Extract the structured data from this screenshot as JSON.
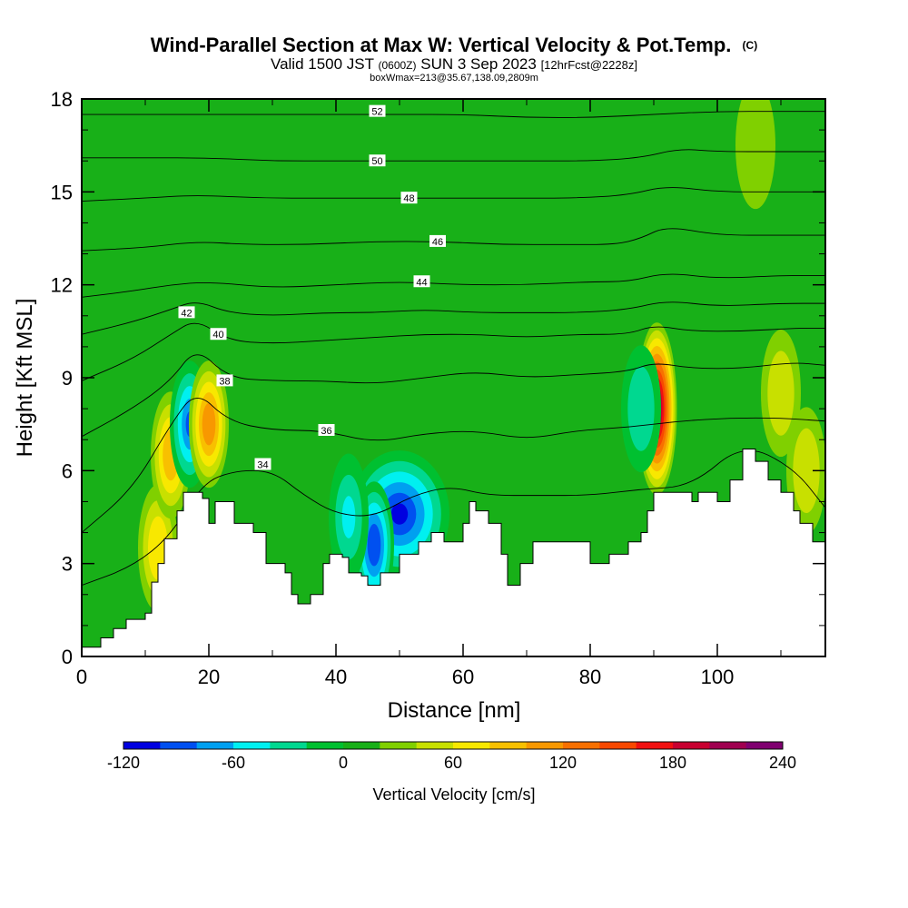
{
  "figure": {
    "title": "Wind-Parallel Section at Max W: Vertical Velocity & Pot.Temp.",
    "copyright": "(C)",
    "valid_prefix": "Valid 1500 JST",
    "valid_utc": "(0600Z)",
    "valid_date": "SUN 3 Sep 2023",
    "forecast": "[12hrFcst@2228z]",
    "box_info": "boxWmax=213@35.67,138.09,2809m"
  },
  "chart_data": {
    "type": "contour",
    "xlabel": "Distance [nm]",
    "ylabel": "Height [Kft MSL]",
    "xlim": [
      0,
      117
    ],
    "ylim": [
      0,
      18
    ],
    "x_ticks": [
      "0",
      "20",
      "40",
      "60",
      "80",
      "100"
    ],
    "y_ticks": [
      "0",
      "3",
      "6",
      "9",
      "12",
      "15",
      "18"
    ],
    "fill_variable": "Vertical Velocity",
    "colorbar": {
      "label": "Vertical Velocity [cm/s]",
      "tick_labels": [
        "-120",
        "-60",
        "0",
        "60",
        "120",
        "180",
        "240"
      ],
      "levels": [
        -120,
        -100,
        -80,
        -60,
        -40,
        -20,
        0,
        20,
        40,
        60,
        80,
        100,
        120,
        140,
        160,
        180,
        200,
        220,
        240
      ],
      "colors": [
        "#0000e0",
        "#0050f0",
        "#00a0f0",
        "#00f0f0",
        "#00d890",
        "#00c030",
        "#18b018",
        "#80d000",
        "#c8e000",
        "#f8e800",
        "#f8c000",
        "#f89800",
        "#f87000",
        "#f84800",
        "#f01010",
        "#c80030",
        "#a00050",
        "#800070"
      ]
    },
    "background_w_level": 0,
    "terrain_height_kft": [
      [
        0,
        0.3
      ],
      [
        3,
        0.6
      ],
      [
        5,
        0.9
      ],
      [
        7,
        1.2
      ],
      [
        10,
        1.4
      ],
      [
        11,
        2.4
      ],
      [
        12,
        3.0
      ],
      [
        13,
        3.8
      ],
      [
        15,
        4.7
      ],
      [
        16,
        5.3
      ],
      [
        19,
        5.1
      ],
      [
        20,
        4.3
      ],
      [
        21,
        5.0
      ],
      [
        23,
        5.0
      ],
      [
        24,
        4.3
      ],
      [
        27,
        4.0
      ],
      [
        29,
        3.0
      ],
      [
        32,
        2.7
      ],
      [
        33,
        2.0
      ],
      [
        34,
        1.7
      ],
      [
        36,
        2.0
      ],
      [
        38,
        3.0
      ],
      [
        39,
        3.3
      ],
      [
        41,
        3.2
      ],
      [
        42,
        2.7
      ],
      [
        44,
        2.6
      ],
      [
        45,
        2.3
      ],
      [
        47,
        2.7
      ],
      [
        50,
        3.3
      ],
      [
        53,
        3.7
      ],
      [
        55,
        4.0
      ],
      [
        57,
        3.7
      ],
      [
        60,
        4.3
      ],
      [
        61,
        5.0
      ],
      [
        62,
        4.7
      ],
      [
        64,
        4.3
      ],
      [
        66,
        3.3
      ],
      [
        67,
        2.3
      ],
      [
        69,
        3.0
      ],
      [
        71,
        3.7
      ],
      [
        73,
        3.7
      ],
      [
        79,
        3.7
      ],
      [
        80,
        3.0
      ],
      [
        82,
        3.0
      ],
      [
        83,
        3.3
      ],
      [
        86,
        3.7
      ],
      [
        88,
        4.0
      ],
      [
        89,
        4.7
      ],
      [
        90,
        5.3
      ],
      [
        95,
        5.3
      ],
      [
        96,
        5.0
      ],
      [
        97,
        5.3
      ],
      [
        100,
        5.0
      ],
      [
        102,
        5.7
      ],
      [
        104,
        6.7
      ],
      [
        106,
        6.3
      ],
      [
        108,
        5.7
      ],
      [
        110,
        5.3
      ],
      [
        112,
        4.7
      ],
      [
        113,
        4.3
      ],
      [
        115,
        3.7
      ],
      [
        117,
        3.3
      ]
    ],
    "vertical_velocity_features_cms": [
      {
        "x": 12,
        "y": 3.5,
        "w_cms": 75
      },
      {
        "x": 14,
        "y": 6.5,
        "w_cms": 90
      },
      {
        "x": 17,
        "y": 7.5,
        "w_cms": -90
      },
      {
        "x": 20,
        "y": 7.5,
        "w_cms": 110
      },
      {
        "x": 50,
        "y": 4.6,
        "w_cms": -115
      },
      {
        "x": 46,
        "y": 3.6,
        "w_cms": -100
      },
      {
        "x": 42,
        "y": 4.5,
        "w_cms": -50
      },
      {
        "x": 90.5,
        "y": 8.0,
        "w_cms": 200
      },
      {
        "x": 88,
        "y": 8.0,
        "w_cms": -40
      },
      {
        "x": 106,
        "y": 16.5,
        "w_cms": 30
      },
      {
        "x": 110,
        "y": 8.5,
        "w_cms": 55
      },
      {
        "x": 114,
        "y": 6.0,
        "w_cms": 45
      }
    ],
    "isentropes": [
      {
        "label": "34",
        "label_x": 28.5,
        "label_y": 6.2,
        "pts": [
          [
            0,
            2.3
          ],
          [
            8,
            2.9
          ],
          [
            14,
            3.9
          ],
          [
            19,
            5.6
          ],
          [
            24,
            6.0
          ],
          [
            30,
            6.0
          ],
          [
            35,
            5.2
          ],
          [
            40,
            4.6
          ],
          [
            46,
            4.5
          ],
          [
            52,
            5.2
          ],
          [
            58,
            5.5
          ],
          [
            64,
            5.2
          ],
          [
            72,
            5.2
          ],
          [
            80,
            5.2
          ],
          [
            88,
            5.4
          ],
          [
            96,
            5.5
          ],
          [
            104,
            6.9
          ],
          [
            112,
            6.1
          ],
          [
            117,
            4.8
          ]
        ]
      },
      {
        "label": "36",
        "label_x": 38.5,
        "label_y": 7.3,
        "pts": [
          [
            0,
            4.0
          ],
          [
            8,
            5.4
          ],
          [
            14,
            7.5
          ],
          [
            18,
            8.6
          ],
          [
            23,
            7.6
          ],
          [
            30,
            7.3
          ],
          [
            38,
            7.3
          ],
          [
            46,
            6.9
          ],
          [
            54,
            7.2
          ],
          [
            62,
            7.3
          ],
          [
            70,
            7.0
          ],
          [
            78,
            7.3
          ],
          [
            86,
            7.4
          ],
          [
            94,
            7.6
          ],
          [
            102,
            7.7
          ],
          [
            110,
            7.7
          ],
          [
            117,
            7.6
          ]
        ]
      },
      {
        "label": "38",
        "label_x": 22.5,
        "label_y": 8.9,
        "pts": [
          [
            0,
            7.1
          ],
          [
            8,
            8.0
          ],
          [
            14,
            8.9
          ],
          [
            18,
            10.0
          ],
          [
            23,
            9.0
          ],
          [
            30,
            8.9
          ],
          [
            38,
            8.9
          ],
          [
            46,
            8.8
          ],
          [
            54,
            9.0
          ],
          [
            62,
            9.2
          ],
          [
            70,
            9.0
          ],
          [
            78,
            9.1
          ],
          [
            86,
            9.2
          ],
          [
            90,
            9.5
          ],
          [
            96,
            9.3
          ],
          [
            104,
            9.3
          ],
          [
            112,
            9.5
          ],
          [
            117,
            9.4
          ]
        ]
      },
      {
        "label": "40",
        "label_x": 21.5,
        "label_y": 10.4,
        "pts": [
          [
            0,
            8.9
          ],
          [
            8,
            9.6
          ],
          [
            14,
            10.4
          ],
          [
            18,
            10.9
          ],
          [
            23,
            10.2
          ],
          [
            30,
            10.1
          ],
          [
            38,
            10.2
          ],
          [
            46,
            10.3
          ],
          [
            54,
            10.4
          ],
          [
            62,
            10.4
          ],
          [
            70,
            10.3
          ],
          [
            78,
            10.4
          ],
          [
            86,
            10.4
          ],
          [
            90,
            10.7
          ],
          [
            96,
            10.5
          ],
          [
            104,
            10.5
          ],
          [
            112,
            10.6
          ],
          [
            117,
            10.6
          ]
        ]
      },
      {
        "label": "42",
        "label_x": 16.5,
        "label_y": 11.1,
        "pts": [
          [
            0,
            10.4
          ],
          [
            8,
            10.8
          ],
          [
            14,
            11.2
          ],
          [
            18,
            11.5
          ],
          [
            23,
            11.1
          ],
          [
            30,
            11.0
          ],
          [
            38,
            11.1
          ],
          [
            46,
            11.1
          ],
          [
            54,
            11.2
          ],
          [
            62,
            11.1
          ],
          [
            70,
            11.1
          ],
          [
            78,
            11.1
          ],
          [
            86,
            11.2
          ],
          [
            92,
            11.5
          ],
          [
            100,
            11.3
          ],
          [
            110,
            11.4
          ],
          [
            117,
            11.4
          ]
        ]
      },
      {
        "label": "44",
        "label_x": 53.5,
        "label_y": 12.1,
        "pts": [
          [
            0,
            11.6
          ],
          [
            8,
            11.8
          ],
          [
            14,
            12.0
          ],
          [
            20,
            12.1
          ],
          [
            30,
            11.9
          ],
          [
            40,
            12.0
          ],
          [
            50,
            12.1
          ],
          [
            60,
            12.0
          ],
          [
            70,
            12.0
          ],
          [
            80,
            12.1
          ],
          [
            86,
            12.1
          ],
          [
            92,
            12.4
          ],
          [
            100,
            12.2
          ],
          [
            110,
            12.3
          ],
          [
            117,
            12.3
          ]
        ]
      },
      {
        "label": "46",
        "label_x": 56,
        "label_y": 13.4,
        "pts": [
          [
            0,
            13.1
          ],
          [
            10,
            13.2
          ],
          [
            18,
            13.4
          ],
          [
            26,
            13.3
          ],
          [
            36,
            13.3
          ],
          [
            46,
            13.4
          ],
          [
            56,
            13.4
          ],
          [
            66,
            13.3
          ],
          [
            76,
            13.3
          ],
          [
            84,
            13.3
          ],
          [
            88,
            13.5
          ],
          [
            92,
            13.9
          ],
          [
            100,
            13.6
          ],
          [
            110,
            13.6
          ],
          [
            117,
            13.6
          ]
        ]
      },
      {
        "label": "48",
        "label_x": 51.5,
        "label_y": 14.8,
        "pts": [
          [
            0,
            14.7
          ],
          [
            10,
            14.8
          ],
          [
            18,
            14.9
          ],
          [
            28,
            14.8
          ],
          [
            38,
            14.8
          ],
          [
            48,
            14.8
          ],
          [
            58,
            14.8
          ],
          [
            68,
            14.8
          ],
          [
            78,
            14.8
          ],
          [
            86,
            14.9
          ],
          [
            92,
            15.2
          ],
          [
            100,
            15.0
          ],
          [
            110,
            15.0
          ],
          [
            117,
            15.0
          ]
        ]
      },
      {
        "label": "50",
        "label_x": 46.5,
        "label_y": 16.0,
        "pts": [
          [
            0,
            16.1
          ],
          [
            10,
            16.1
          ],
          [
            20,
            16.1
          ],
          [
            30,
            16.0
          ],
          [
            40,
            16.0
          ],
          [
            50,
            16.0
          ],
          [
            60,
            16.0
          ],
          [
            70,
            16.0
          ],
          [
            80,
            16.0
          ],
          [
            88,
            16.1
          ],
          [
            94,
            16.4
          ],
          [
            100,
            16.3
          ],
          [
            110,
            16.3
          ],
          [
            117,
            16.3
          ]
        ]
      },
      {
        "label": "52",
        "label_x": 46.5,
        "label_y": 17.6,
        "pts": [
          [
            0,
            17.5
          ],
          [
            10,
            17.5
          ],
          [
            20,
            17.5
          ],
          [
            30,
            17.5
          ],
          [
            40,
            17.5
          ],
          [
            50,
            17.5
          ],
          [
            60,
            17.5
          ],
          [
            70,
            17.4
          ],
          [
            80,
            17.4
          ],
          [
            90,
            17.5
          ],
          [
            100,
            17.6
          ],
          [
            110,
            17.6
          ],
          [
            117,
            17.6
          ]
        ]
      }
    ]
  }
}
